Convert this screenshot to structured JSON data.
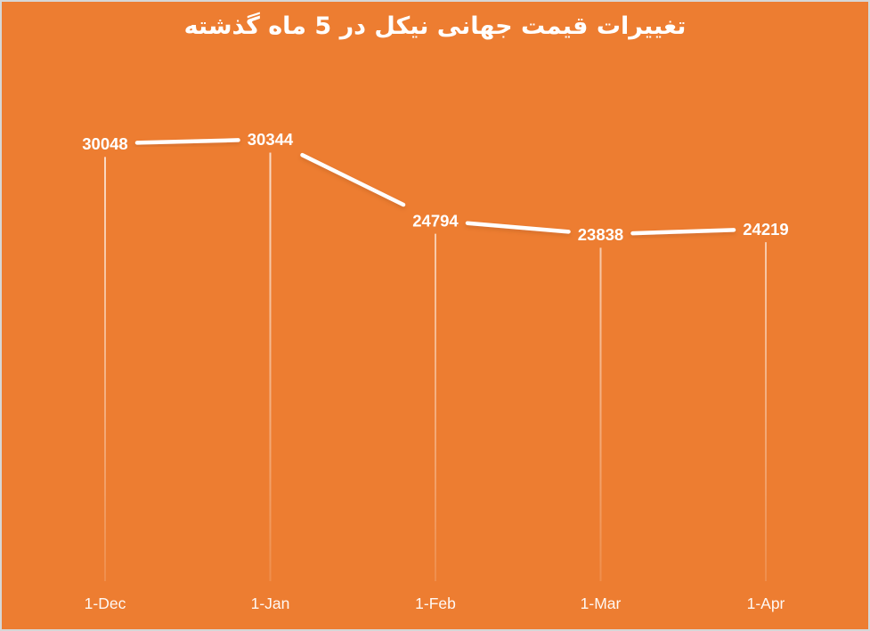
{
  "frame": {
    "background_color": "#ED7D31",
    "border_color": "#D7D7D7"
  },
  "chart_data": {
    "type": "line",
    "title": "تغییرات قیمت جهانی نیکل در 5 ماه گذشته",
    "categories": [
      "1-Dec",
      "1-Jan",
      "1-Feb",
      "1-Mar",
      "1-Apr"
    ],
    "values": [
      30048,
      30344,
      24794,
      23838,
      24219
    ],
    "data_labels": [
      "30048",
      "30344",
      "24794",
      "23838",
      "24219"
    ],
    "xlabel": "",
    "ylabel": "",
    "ylim": [
      0,
      35000
    ],
    "grid": false,
    "legend_position": "none",
    "line_color": "#FFFFFF",
    "data_label_color": "#FFFFFF",
    "axis_label_color": "#FFFFFF",
    "drop_lines": true
  }
}
